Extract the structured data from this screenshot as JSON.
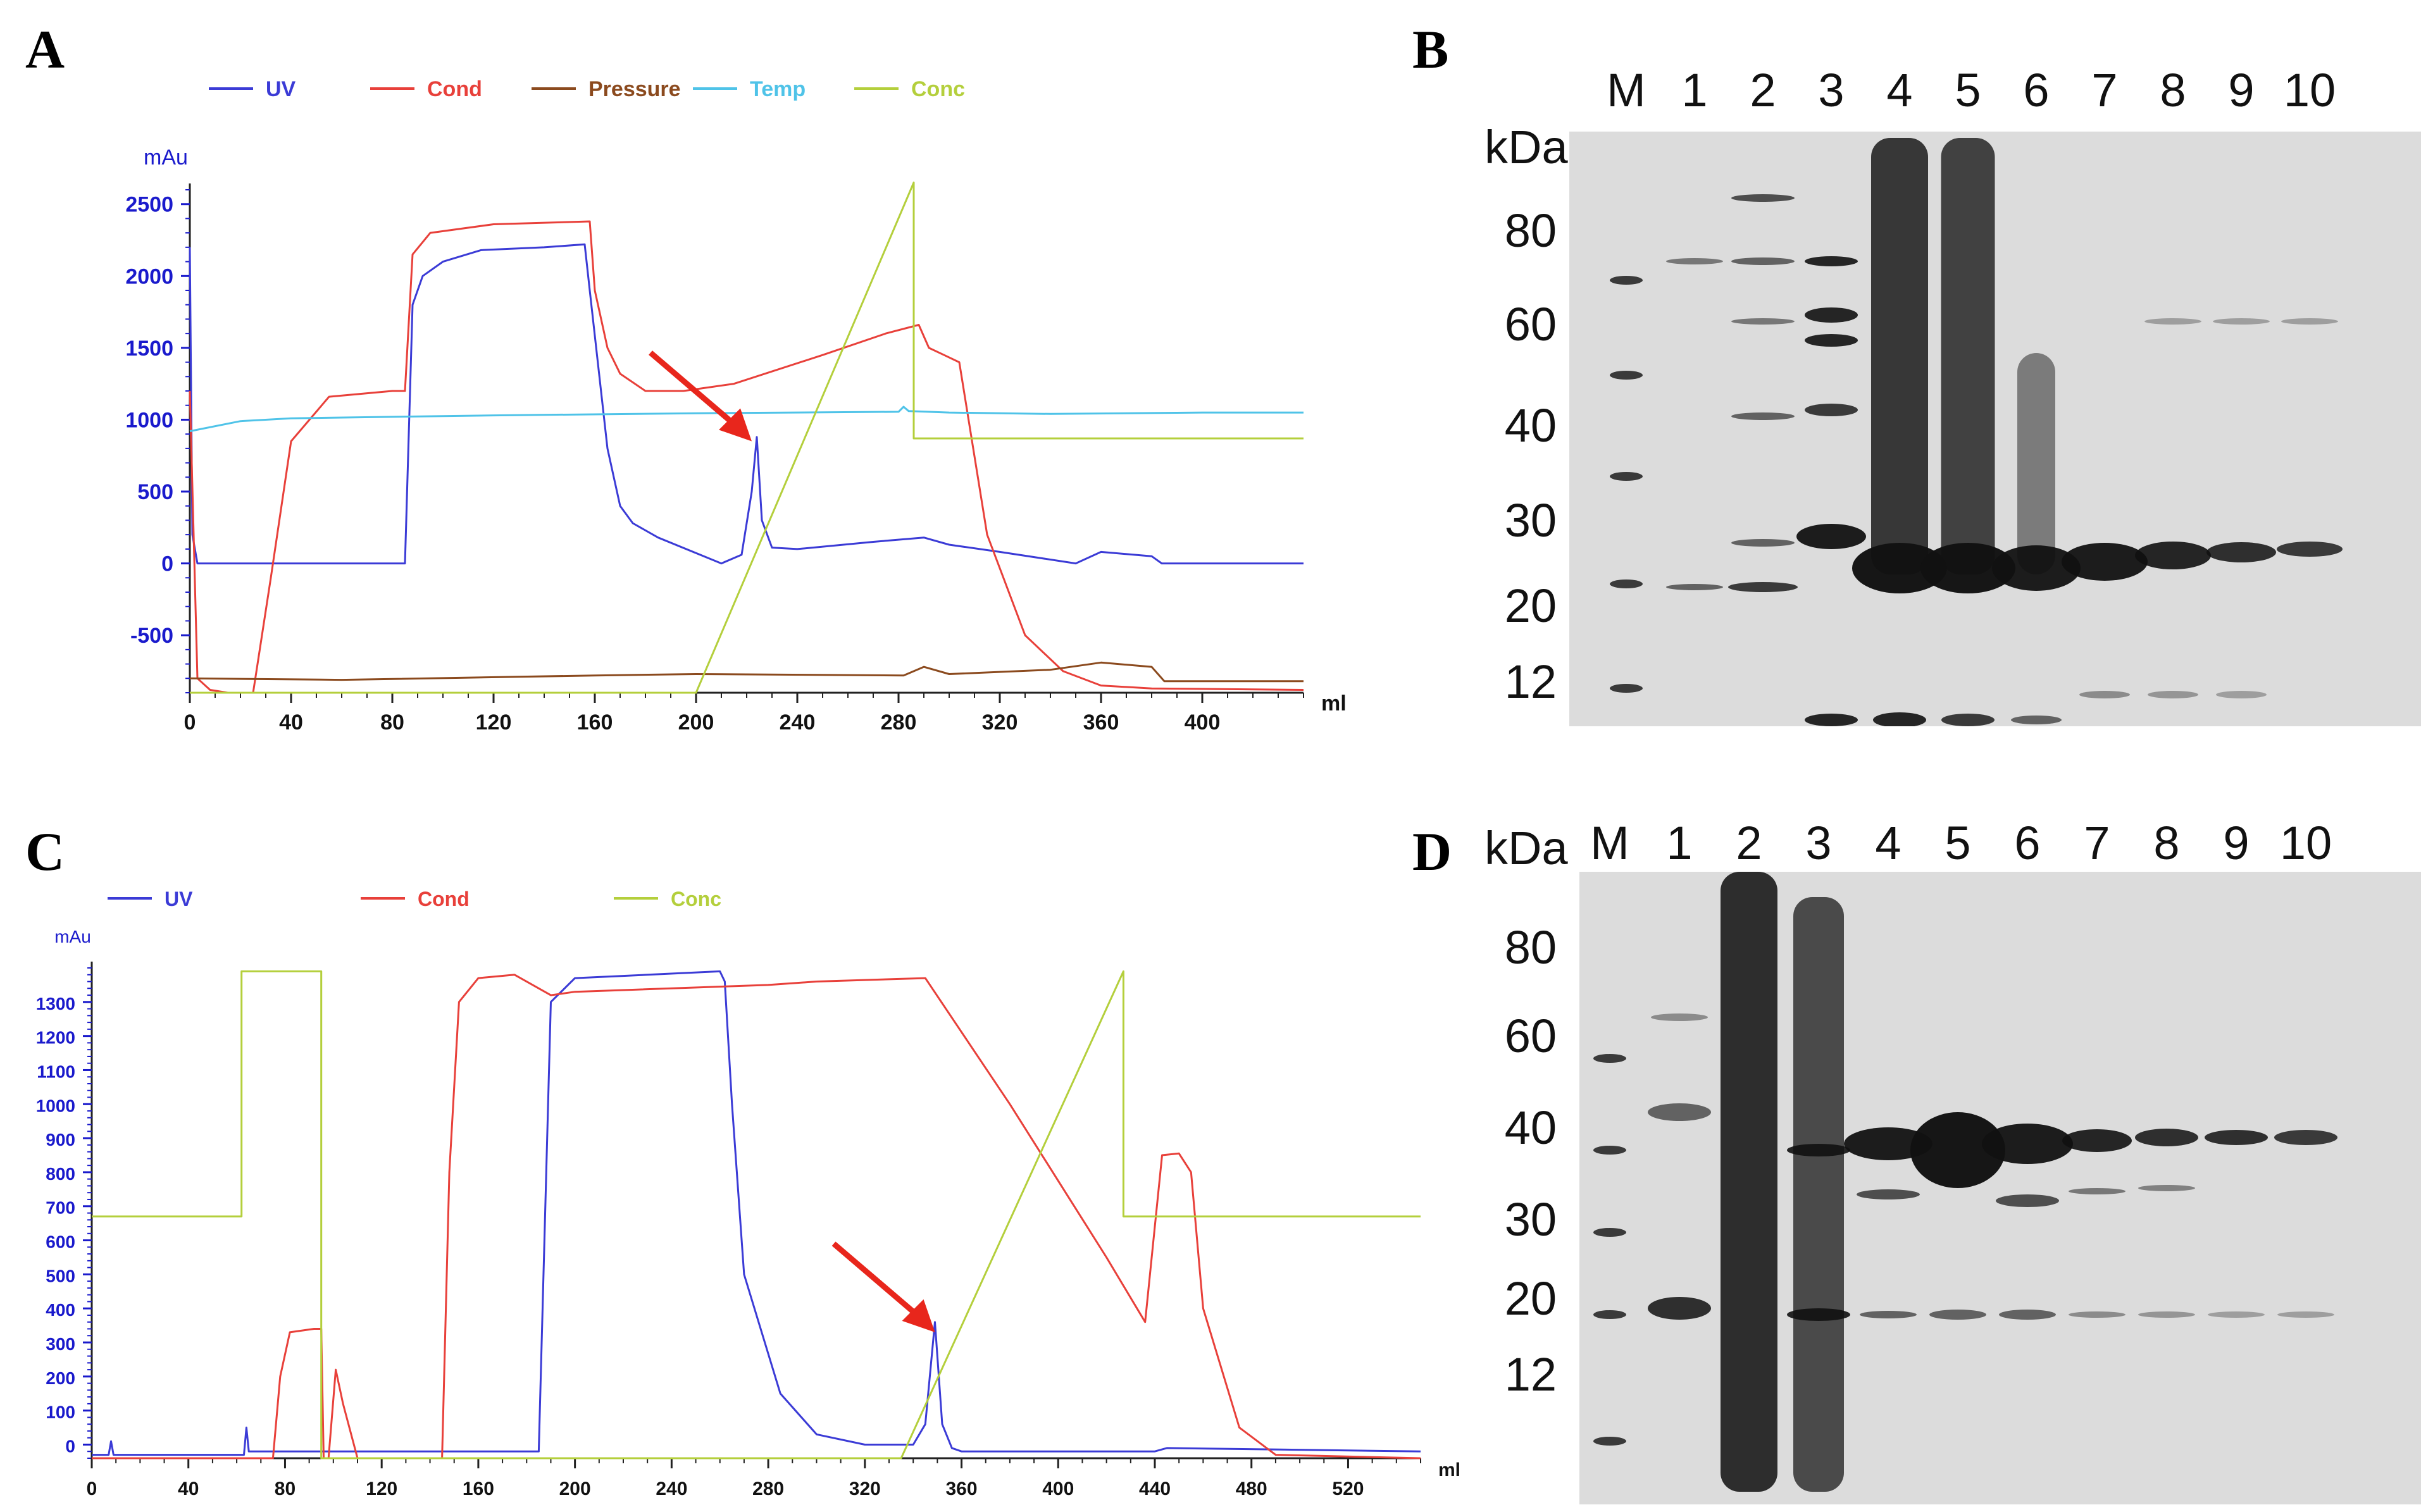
{
  "panels": {
    "a": "A",
    "b": "B",
    "c": "C",
    "d": "D"
  },
  "colors": {
    "uv": "#3b3bd6",
    "cond": "#e8403a",
    "pressure": "#8b4a1e",
    "temp": "#4fc3e8",
    "conc": "#b4cf3c",
    "arrow": "#e8261c",
    "axis": "#1a1acc"
  },
  "chart_data": [
    {
      "id": "A",
      "type": "line",
      "title": "",
      "ylabel": "mAu",
      "xlabel": "ml",
      "xlim": [
        0,
        440
      ],
      "ylim": [
        -900,
        2600
      ],
      "xticks": [
        0,
        40,
        80,
        120,
        160,
        200,
        240,
        280,
        320,
        360,
        400
      ],
      "yticks": [
        -500,
        0,
        500,
        1000,
        1500,
        2000,
        2500
      ],
      "legend": [
        "UV",
        "Cond",
        "Pressure",
        "Temp",
        "Conc"
      ],
      "annotation": {
        "type": "arrow",
        "points_to": [
          222,
          850
        ]
      },
      "series": [
        {
          "name": "UV",
          "x": [
            0,
            1,
            3,
            5,
            8,
            85,
            88,
            92,
            100,
            115,
            140,
            156,
            158,
            165,
            170,
            175,
            185,
            210,
            218,
            222,
            224,
            226,
            230,
            240,
            270,
            290,
            300,
            320,
            350,
            360,
            380,
            384,
            440
          ],
          "y": [
            2200,
            200,
            0,
            0,
            0,
            0,
            1800,
            2000,
            2100,
            2180,
            2200,
            2220,
            1900,
            800,
            400,
            280,
            180,
            0,
            60,
            500,
            880,
            300,
            110,
            100,
            150,
            180,
            130,
            80,
            0,
            80,
            50,
            0,
            0
          ]
        },
        {
          "name": "Cond",
          "x": [
            0,
            3,
            8,
            15,
            25,
            32,
            40,
            55,
            80,
            85,
            88,
            95,
            120,
            158,
            160,
            165,
            170,
            180,
            195,
            215,
            250,
            275,
            288,
            292,
            298,
            304,
            315,
            330,
            345,
            360,
            380,
            440
          ],
          "y": [
            1200,
            -800,
            -880,
            -900,
            -900,
            -100,
            850,
            1160,
            1200,
            1200,
            2150,
            2300,
            2360,
            2380,
            1900,
            1500,
            1320,
            1200,
            1200,
            1250,
            1450,
            1600,
            1660,
            1500,
            1450,
            1400,
            200,
            -500,
            -750,
            -850,
            -870,
            -880
          ]
        },
        {
          "name": "Pressure",
          "x": [
            0,
            60,
            160,
            200,
            282,
            290,
            300,
            340,
            360,
            380,
            385,
            440
          ],
          "y": [
            -800,
            -810,
            -780,
            -770,
            -780,
            -720,
            -770,
            -740,
            -690,
            -720,
            -820,
            -820
          ]
        },
        {
          "name": "Temp",
          "x": [
            0,
            20,
            40,
            80,
            120,
            200,
            280,
            282,
            284,
            300,
            340,
            400,
            440
          ],
          "y": [
            920,
            990,
            1010,
            1020,
            1030,
            1045,
            1055,
            1090,
            1060,
            1050,
            1040,
            1050,
            1050
          ]
        },
        {
          "name": "Conc",
          "x": [
            0,
            200,
            286,
            286,
            440
          ],
          "y": [
            -900,
            -900,
            2650,
            870,
            870
          ]
        }
      ]
    },
    {
      "id": "C",
      "type": "line",
      "title": "",
      "ylabel": "mAu",
      "xlabel": "ml",
      "xlim": [
        0,
        550
      ],
      "ylim": [
        -40,
        1400
      ],
      "xticks": [
        0,
        40,
        80,
        120,
        160,
        200,
        240,
        280,
        320,
        360,
        400,
        440,
        480,
        520
      ],
      "yticks": [
        0,
        100,
        200,
        300,
        400,
        500,
        600,
        700,
        800,
        900,
        1000,
        1100,
        1200,
        1300
      ],
      "legend": [
        "UV",
        "Cond",
        "Conc"
      ],
      "annotation": {
        "type": "arrow",
        "points_to": [
          349,
          330
        ]
      },
      "series": [
        {
          "name": "UV",
          "x": [
            0,
            7,
            8,
            9,
            63,
            64,
            65,
            150,
            185,
            190,
            200,
            230,
            260,
            262,
            265,
            270,
            285,
            300,
            320,
            340,
            345,
            349,
            352,
            356,
            360,
            380,
            440,
            445,
            550
          ],
          "y": [
            -30,
            -30,
            10,
            -30,
            -30,
            50,
            -20,
            -20,
            -20,
            1300,
            1370,
            1380,
            1390,
            1360,
            1000,
            500,
            150,
            30,
            0,
            0,
            60,
            360,
            60,
            -10,
            -20,
            -20,
            -20,
            -10,
            -20
          ]
        },
        {
          "name": "Cond",
          "x": [
            0,
            75,
            78,
            82,
            92,
            95,
            96,
            98,
            101,
            104,
            110,
            145,
            148,
            152,
            160,
            175,
            185,
            190,
            200,
            280,
            300,
            345,
            380,
            420,
            436,
            440,
            443,
            450,
            455,
            460,
            475,
            490,
            550
          ],
          "y": [
            -40,
            -40,
            200,
            330,
            340,
            340,
            -40,
            -40,
            220,
            120,
            -40,
            -40,
            800,
            1300,
            1370,
            1380,
            1340,
            1320,
            1330,
            1350,
            1360,
            1370,
            1000,
            550,
            360,
            640,
            850,
            855,
            800,
            400,
            50,
            -30,
            -40
          ]
        },
        {
          "name": "Conc",
          "x": [
            0,
            62,
            62,
            95,
            95,
            335,
            427,
            427,
            550
          ],
          "y": [
            670,
            670,
            1390,
            1390,
            -40,
            -40,
            1390,
            670,
            670
          ]
        }
      ]
    }
  ],
  "gels": [
    {
      "id": "B",
      "kda": "kDa",
      "lanes": [
        "M",
        "1",
        "2",
        "3",
        "4",
        "5",
        "6",
        "7",
        "8",
        "9",
        "10"
      ],
      "mw": [
        "80",
        "60",
        "40",
        "30",
        "20",
        "12"
      ]
    },
    {
      "id": "D",
      "kda": "kDa",
      "lanes": [
        "M",
        "1",
        "2",
        "3",
        "4",
        "5",
        "6",
        "7",
        "8",
        "9",
        "10"
      ],
      "mw": [
        "80",
        "60",
        "40",
        "30",
        "20",
        "12"
      ]
    }
  ]
}
